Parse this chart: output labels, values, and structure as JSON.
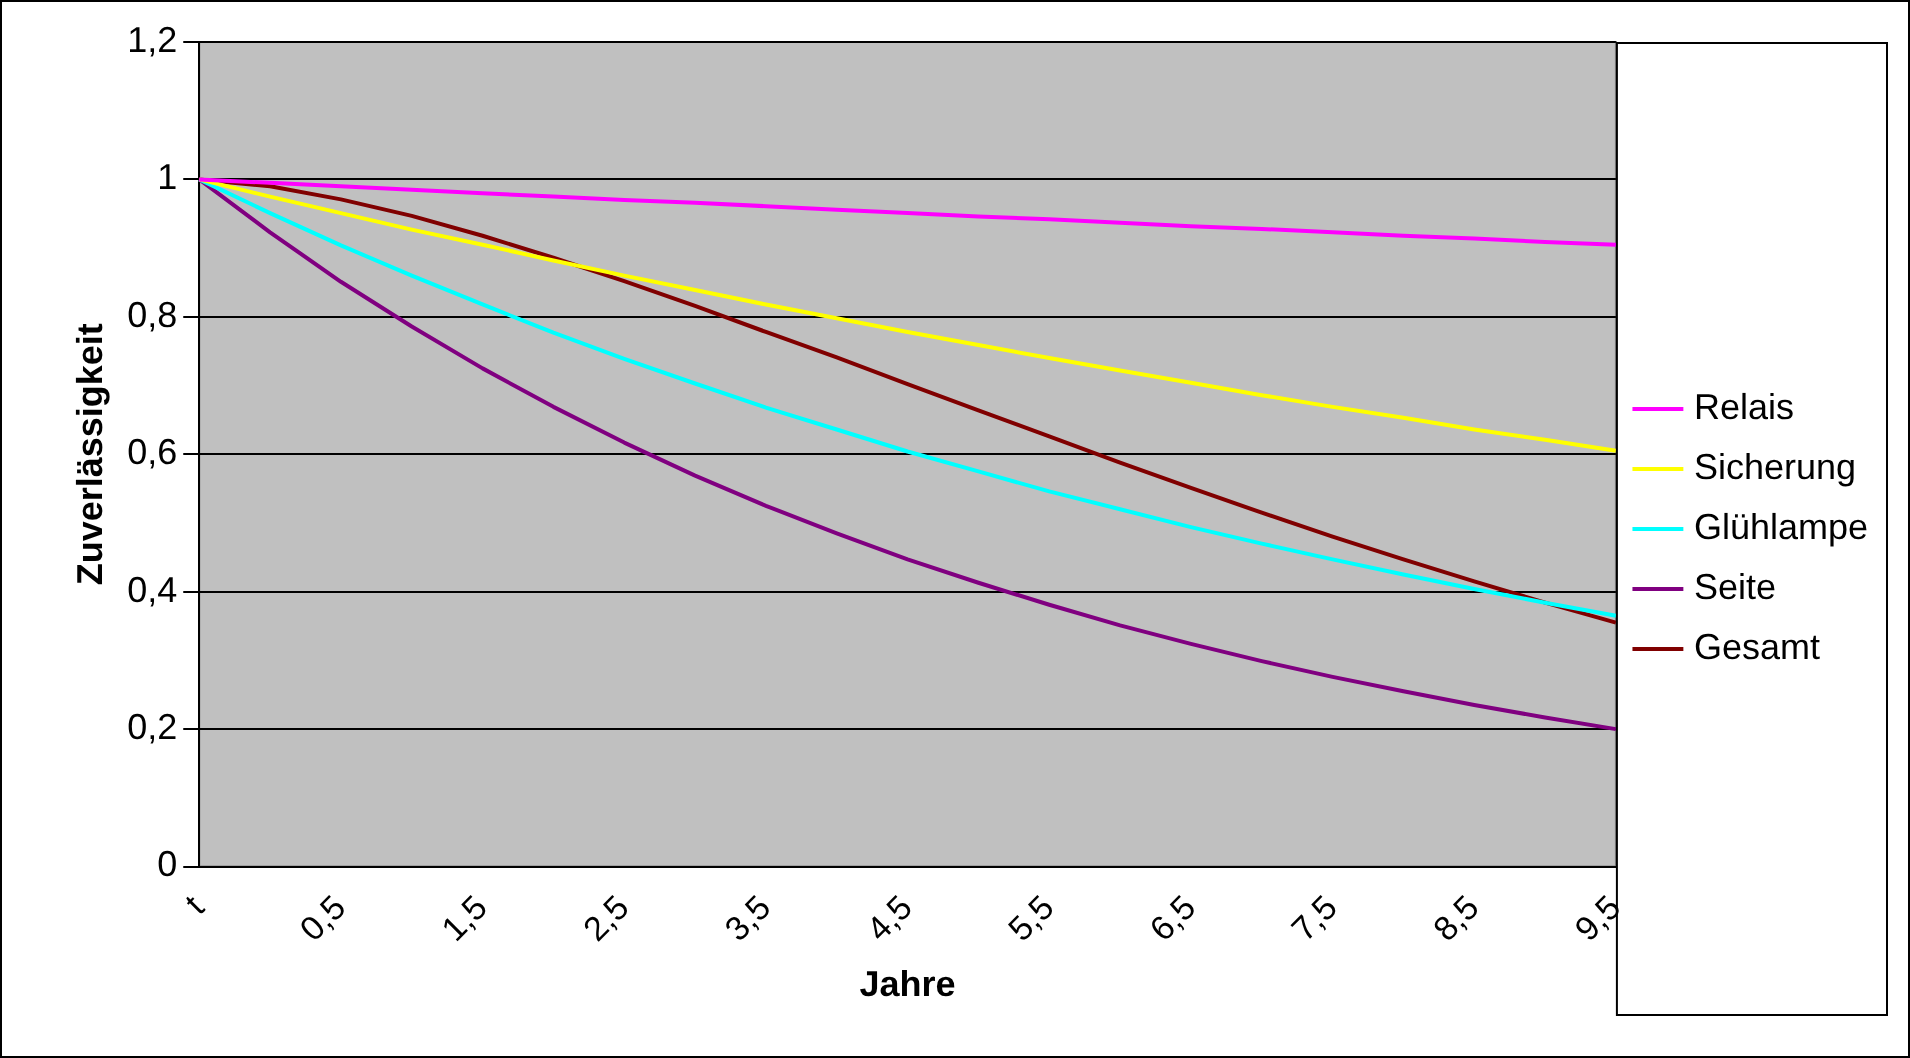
{
  "chart_data": {
    "type": "line",
    "xlabel": "Jahre",
    "ylabel": "Zuverlässigkeit",
    "categories": [
      "t",
      null,
      "0,5",
      null,
      "1,5",
      null,
      "2,5",
      null,
      "3,5",
      null,
      "4,5",
      null,
      "5,5",
      null,
      "6,5",
      null,
      "7,5",
      null,
      "8,5",
      null,
      "9,5"
    ],
    "series": [
      {
        "name": "Relais",
        "color": "#ff00ff",
        "values": [
          1,
          0.995,
          0.99,
          0.985,
          0.98,
          0.975,
          0.97,
          0.966,
          0.961,
          0.956,
          0.951,
          0.946,
          0.942,
          0.937,
          0.932,
          0.928,
          0.923,
          0.918,
          0.914,
          0.909,
          0.905
        ]
      },
      {
        "name": "Sicherung",
        "color": "#ffff00",
        "values": [
          1,
          0.975,
          0.951,
          0.927,
          0.905,
          0.882,
          0.86,
          0.839,
          0.818,
          0.798,
          0.778,
          0.759,
          0.74,
          0.722,
          0.704,
          0.686,
          0.669,
          0.653,
          0.636,
          0.621,
          0.605
        ]
      },
      {
        "name": "Glühlampe",
        "color": "#00ffff",
        "values": [
          1,
          0.951,
          0.904,
          0.86,
          0.818,
          0.777,
          0.739,
          0.703,
          0.668,
          0.636,
          0.604,
          0.575,
          0.546,
          0.52,
          0.494,
          0.47,
          0.447,
          0.425,
          0.404,
          0.384,
          0.365
        ]
      },
      {
        "name": "Seite",
        "color": "#800080",
        "values": [
          1,
          0.923,
          0.851,
          0.786,
          0.725,
          0.669,
          0.617,
          0.569,
          0.525,
          0.485,
          0.447,
          0.413,
          0.381,
          0.351,
          0.324,
          0.299,
          0.276,
          0.255,
          0.235,
          0.217,
          0.2
        ]
      },
      {
        "name": "Gesamt",
        "color": "#800000",
        "values": [
          1,
          0.99,
          0.971,
          0.947,
          0.918,
          0.886,
          0.852,
          0.816,
          0.778,
          0.741,
          0.702,
          0.664,
          0.626,
          0.588,
          0.551,
          0.515,
          0.48,
          0.447,
          0.415,
          0.384,
          0.355
        ]
      }
    ],
    "ylim": [
      0,
      1.2
    ],
    "yticks": [
      0,
      {
        "value": 0.2,
        "label": "0,2"
      },
      {
        "value": 0.4,
        "label": "0,4"
      },
      {
        "value": 0.6,
        "label": "0,6"
      },
      {
        "value": 0.8,
        "label": "0,8"
      },
      1,
      {
        "value": 1.2,
        "label": "1,2"
      }
    ],
    "grid": "y",
    "legend": "right",
    "marker": "none",
    "line_style": "solid"
  }
}
